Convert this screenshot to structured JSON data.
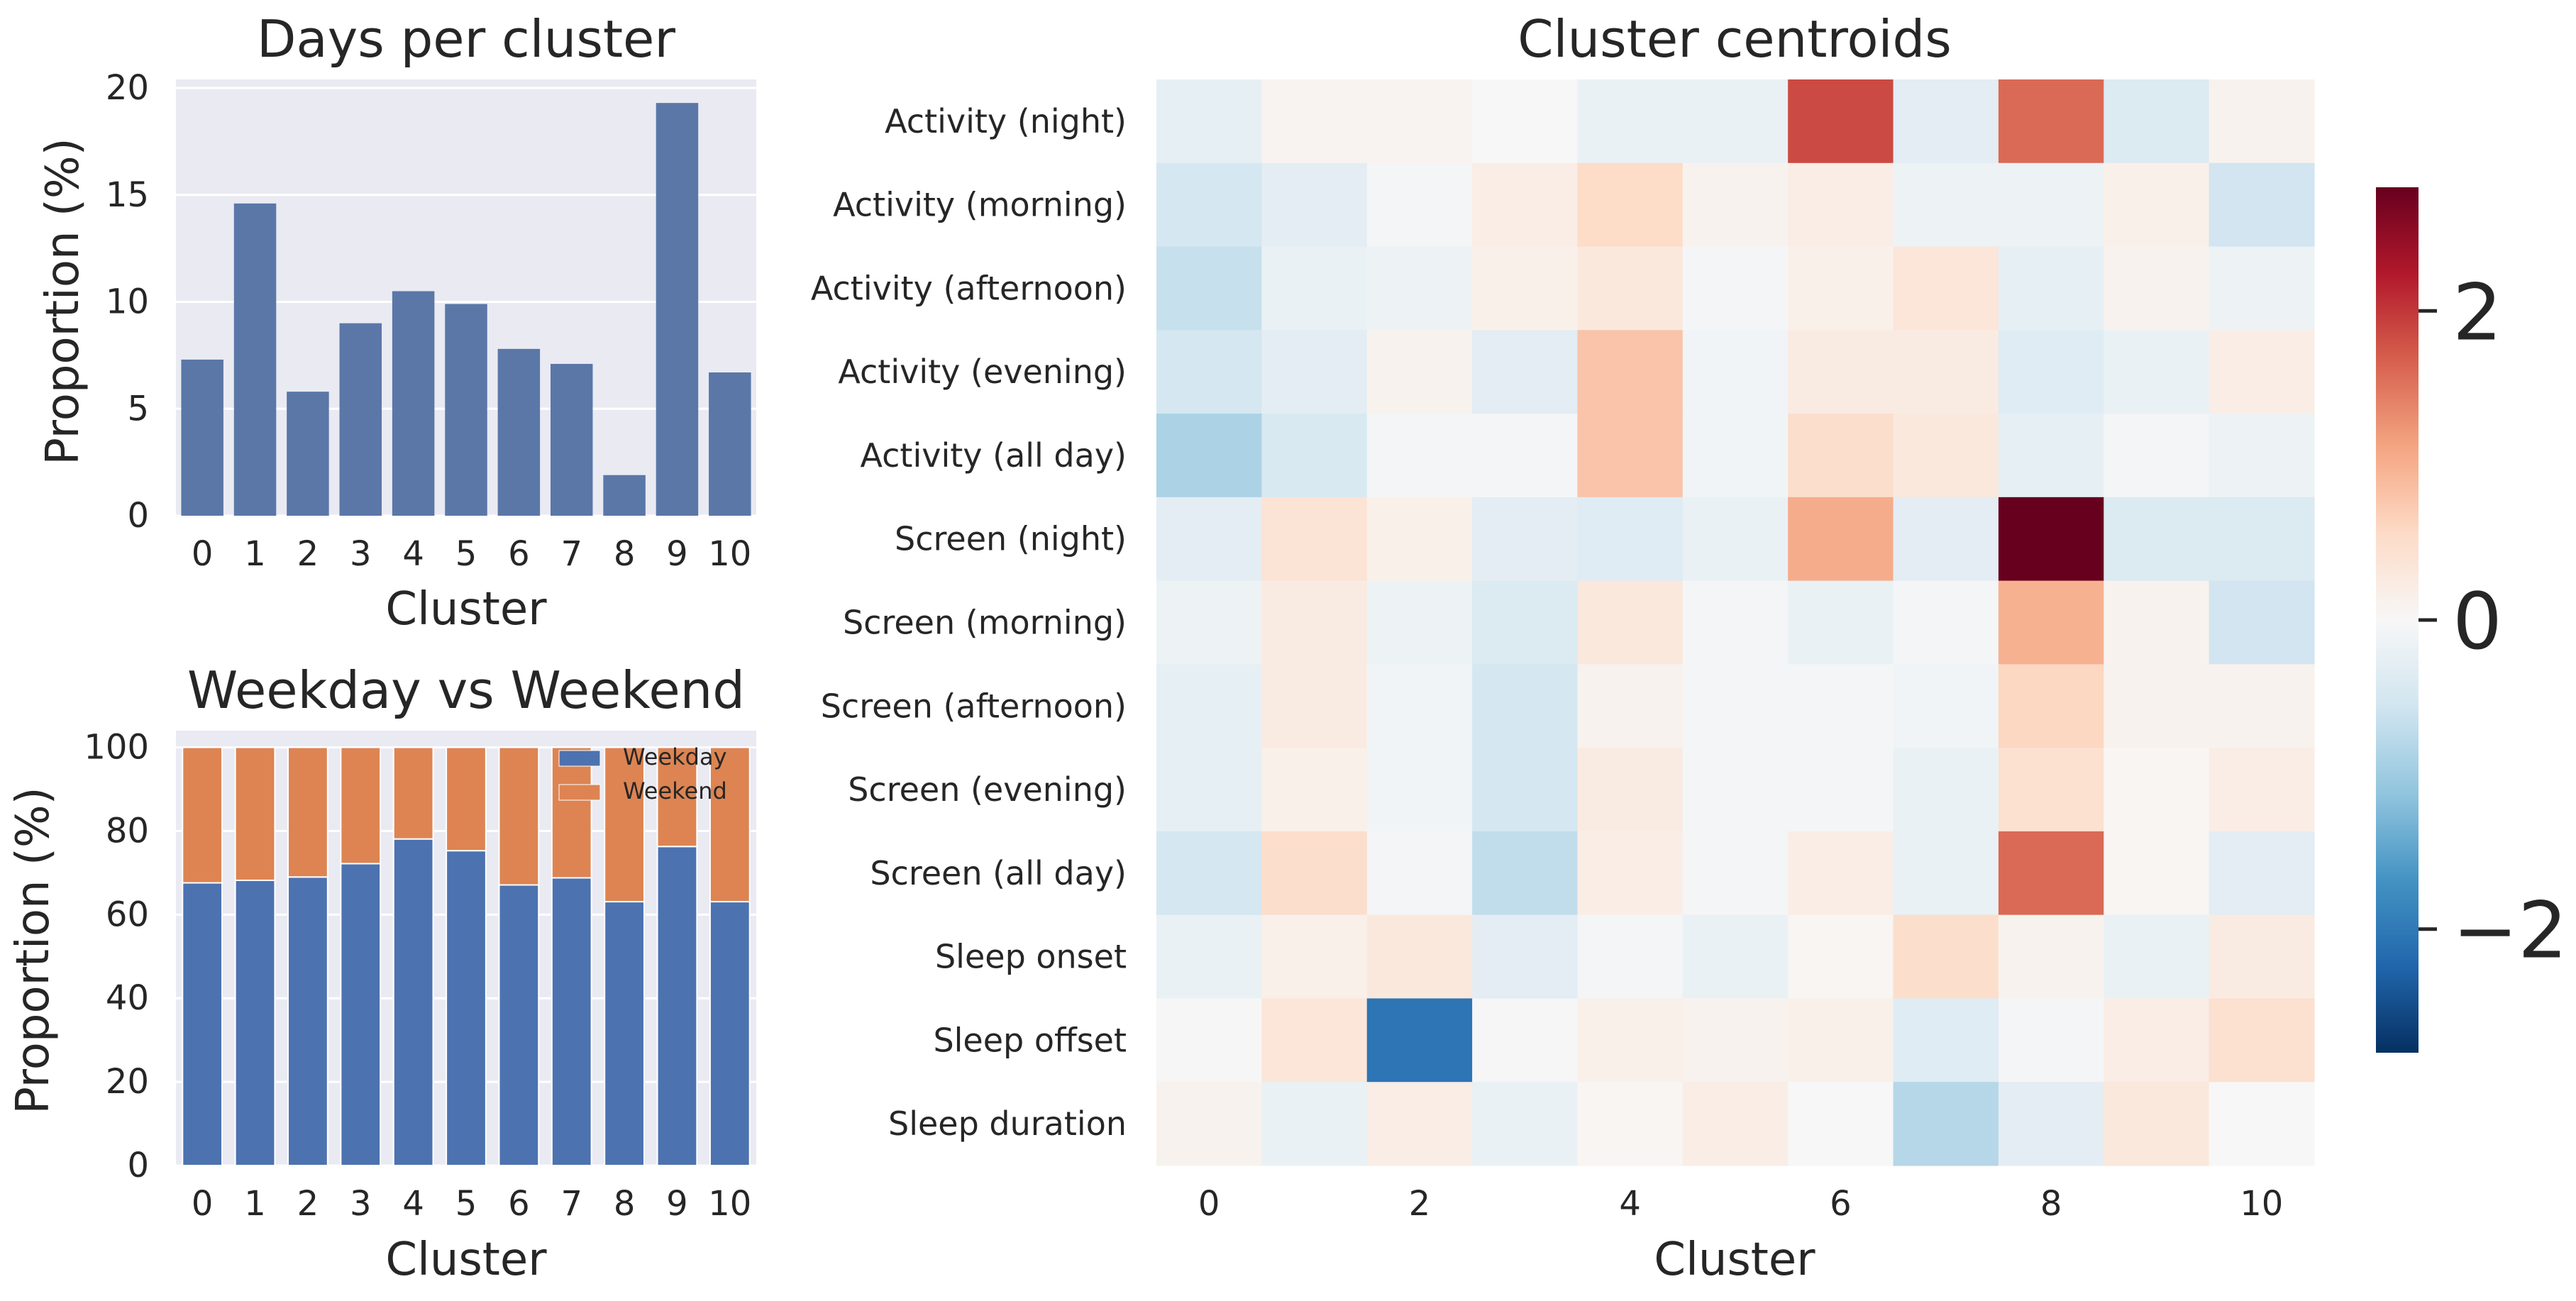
{
  "chart_data": [
    {
      "type": "bar",
      "title": "Days per cluster",
      "xlabel": "Cluster",
      "ylabel": "Proportion (%)",
      "categories": [
        "0",
        "1",
        "2",
        "3",
        "4",
        "5",
        "6",
        "7",
        "8",
        "9",
        "10"
      ],
      "values": [
        7.3,
        14.6,
        5.8,
        9.0,
        10.5,
        9.9,
        7.8,
        7.1,
        1.9,
        19.3,
        6.7
      ],
      "ylim": [
        0,
        20.4
      ],
      "yticks": [
        "0",
        "5",
        "10",
        "15",
        "20"
      ],
      "grid": true,
      "color": "#5a77a8"
    },
    {
      "type": "bar",
      "stacked": true,
      "title": "Weekday vs Weekend",
      "xlabel": "Cluster",
      "ylabel": "Proportion (%)",
      "categories": [
        "0",
        "1",
        "2",
        "3",
        "4",
        "5",
        "6",
        "7",
        "8",
        "9",
        "10"
      ],
      "ylim": [
        0,
        104
      ],
      "yticks": [
        "0",
        "20",
        "40",
        "60",
        "80",
        "100"
      ],
      "grid": true,
      "legend_position": "top-right",
      "series": [
        {
          "name": "Weekday",
          "color": "#4c72b0",
          "values": [
            67.6,
            68.2,
            69.0,
            72.2,
            78.1,
            75.3,
            67.1,
            68.8,
            63.1,
            76.3,
            63.1
          ]
        },
        {
          "name": "Weekend",
          "color": "#dd8452",
          "values": [
            32.4,
            31.8,
            31.0,
            27.8,
            21.9,
            24.7,
            32.9,
            31.2,
            36.9,
            23.7,
            36.9
          ]
        }
      ]
    },
    {
      "type": "heatmap",
      "title": "Cluster centroids",
      "xlabel": "Cluster",
      "ylabel": "",
      "columns": [
        "0",
        "1",
        "2",
        "3",
        "4",
        "5",
        "6",
        "7",
        "8",
        "9",
        "10"
      ],
      "xticks": [
        "0",
        "2",
        "4",
        "6",
        "8",
        "10"
      ],
      "rows": [
        "Activity (night)",
        "Activity (morning)",
        "Activity (afternoon)",
        "Activity (evening)",
        "Activity (all day)",
        "Screen (night)",
        "Screen (morning)",
        "Screen (afternoon)",
        "Screen (evening)",
        "Screen (all day)",
        "Sleep onset",
        "Sleep offset",
        "Sleep duration"
      ],
      "values": [
        [
          -0.25,
          0.08,
          0.08,
          0.0,
          -0.2,
          -0.2,
          1.85,
          -0.3,
          1.6,
          -0.4,
          0.1
        ],
        [
          -0.5,
          -0.3,
          -0.05,
          0.2,
          0.55,
          0.1,
          0.2,
          -0.15,
          -0.15,
          0.15,
          -0.55
        ],
        [
          -0.65,
          -0.2,
          -0.15,
          0.15,
          0.3,
          -0.05,
          0.15,
          0.35,
          -0.25,
          0.1,
          -0.15
        ],
        [
          -0.5,
          -0.3,
          0.1,
          -0.3,
          0.8,
          -0.1,
          0.25,
          0.25,
          -0.35,
          -0.2,
          0.2
        ],
        [
          -0.9,
          -0.45,
          -0.05,
          -0.05,
          0.8,
          -0.1,
          0.5,
          0.3,
          -0.25,
          -0.05,
          -0.15
        ],
        [
          -0.3,
          0.4,
          0.15,
          -0.3,
          -0.35,
          -0.2,
          1.05,
          -0.3,
          2.8,
          -0.4,
          -0.4
        ],
        [
          -0.15,
          0.25,
          -0.15,
          -0.4,
          0.3,
          -0.05,
          -0.2,
          -0.05,
          1.0,
          0.1,
          -0.55
        ],
        [
          -0.25,
          0.25,
          -0.1,
          -0.5,
          0.1,
          -0.05,
          -0.05,
          -0.1,
          0.6,
          0.1,
          0.1
        ],
        [
          -0.25,
          0.15,
          -0.1,
          -0.5,
          0.25,
          -0.05,
          -0.05,
          -0.2,
          0.45,
          0.05,
          0.2
        ],
        [
          -0.5,
          0.5,
          -0.05,
          -0.7,
          0.2,
          -0.05,
          0.2,
          -0.2,
          1.6,
          0.05,
          -0.3
        ],
        [
          -0.2,
          0.15,
          0.3,
          -0.3,
          -0.05,
          -0.2,
          0.05,
          0.5,
          0.1,
          -0.2,
          0.25
        ],
        [
          -0.02,
          0.35,
          -2.05,
          -0.02,
          0.15,
          0.1,
          0.15,
          -0.35,
          -0.05,
          0.2,
          0.45
        ],
        [
          0.1,
          -0.2,
          0.2,
          -0.2,
          0.05,
          0.2,
          0.0,
          -0.8,
          -0.3,
          0.3,
          0.0
        ]
      ],
      "colormap": "RdBu_r",
      "vmin": -2.8,
      "vmax": 2.8,
      "colorbar_ticks": [
        "2",
        "0",
        "−2"
      ],
      "colorbar_tick_values": [
        2,
        0,
        -2
      ]
    }
  ]
}
